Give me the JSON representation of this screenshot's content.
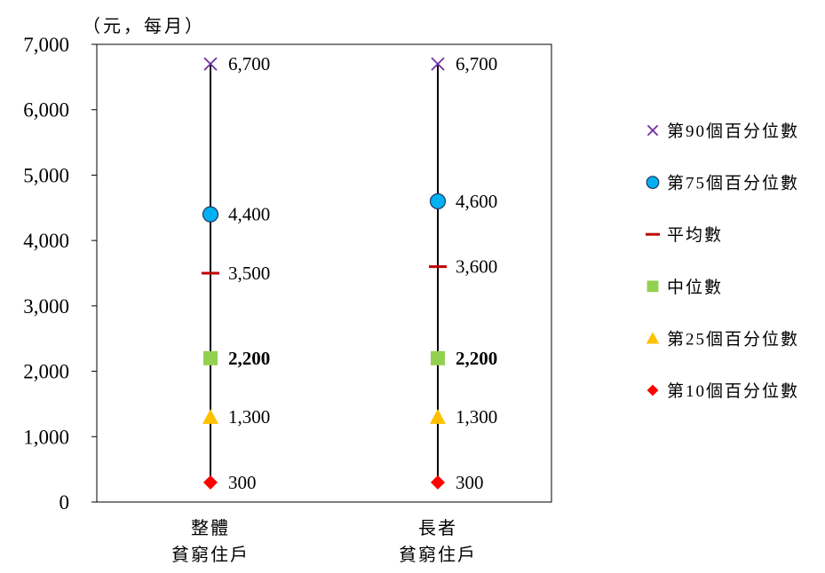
{
  "chart_data": {
    "type": "scatter",
    "title": "",
    "ylabel": "（元，每月）",
    "ylim": [
      0,
      7000
    ],
    "y_ticks": [
      0,
      1000,
      2000,
      3000,
      4000,
      5000,
      6000,
      7000
    ],
    "y_tick_labels": [
      "0",
      "1,000",
      "2,000",
      "3,000",
      "4,000",
      "5,000",
      "6,000",
      "7,000"
    ],
    "categories": [
      {
        "line1": "整體",
        "line2": "貧窮住戶"
      },
      {
        "line1": "長者",
        "line2": "貧窮住戶"
      }
    ],
    "series": [
      {
        "key": "p90",
        "name": "第90個百分位數",
        "marker": "x",
        "color": "#7030a0",
        "values": [
          6700,
          6700
        ],
        "labels": [
          "6,700",
          "6,700"
        ],
        "bold": false
      },
      {
        "key": "p75",
        "name": "第75個百分位數",
        "marker": "circle",
        "color": "#00b0f0",
        "values": [
          4400,
          4600
        ],
        "labels": [
          "4,400",
          "4,600"
        ],
        "bold": false
      },
      {
        "key": "mean",
        "name": "平均數",
        "marker": "dash",
        "color": "#c00000",
        "values": [
          3500,
          3600
        ],
        "labels": [
          "3,500",
          "3,600"
        ],
        "bold": false
      },
      {
        "key": "median",
        "name": "中位數",
        "marker": "square",
        "color": "#92d050",
        "values": [
          2200,
          2200
        ],
        "labels": [
          "2,200",
          "2,200"
        ],
        "bold": true
      },
      {
        "key": "p25",
        "name": "第25個百分位數",
        "marker": "triangle",
        "color": "#ffc000",
        "values": [
          1300,
          1300
        ],
        "labels": [
          "1,300",
          "1,300"
        ],
        "bold": false
      },
      {
        "key": "p10",
        "name": "第10個百分位數",
        "marker": "diamond",
        "color": "#ff0000",
        "values": [
          300,
          300
        ],
        "labels": [
          "300",
          "300"
        ],
        "bold": false
      }
    ],
    "range_line": {
      "from": 300,
      "to": 6700,
      "color": "#000000"
    },
    "legend_position": "right",
    "grid": false
  }
}
